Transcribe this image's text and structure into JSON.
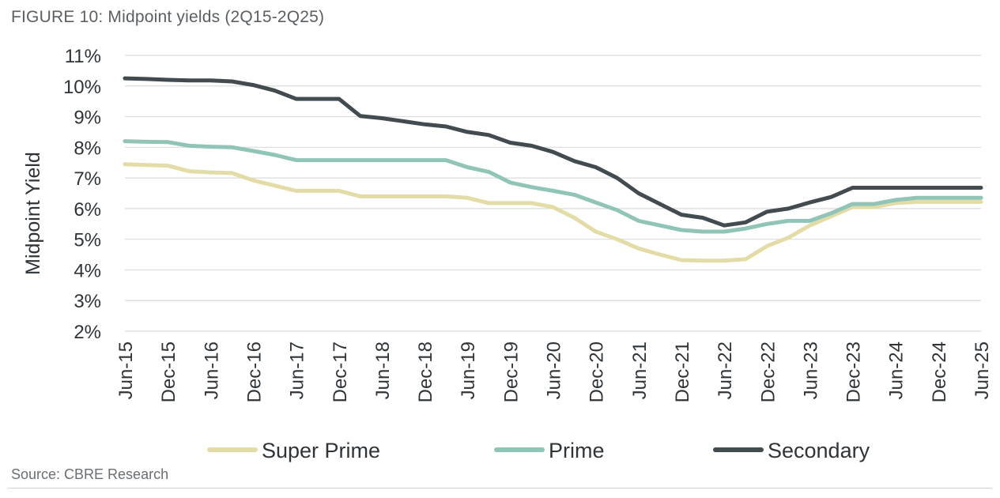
{
  "figure": {
    "title": "FIGURE 10: Midpoint yields (2Q15-2Q25)",
    "source": "Source: CBRE Research"
  },
  "chart_data": {
    "type": "line",
    "title": "FIGURE 10: Midpoint yields (2Q15-2Q25)",
    "xlabel": "",
    "ylabel": "Midpoint Yield",
    "y_unit": "%",
    "ylim": [
      2,
      11
    ],
    "yticks": [
      "2%",
      "3%",
      "4%",
      "5%",
      "6%",
      "7%",
      "8%",
      "9%",
      "10%",
      "11%"
    ],
    "xtick_labels": [
      "Jun-15",
      "Dec-15",
      "Jun-16",
      "Dec-16",
      "Jun-17",
      "Dec-17",
      "Jun-18",
      "Dec-18",
      "Jun-19",
      "Dec-19",
      "Jun-20",
      "Dec-20",
      "Jun-21",
      "Dec-21",
      "Jun-22",
      "Dec-22",
      "Jun-23",
      "Dec-23",
      "Jun-24",
      "Dec-24",
      "Jun-25"
    ],
    "x": [
      "Jun-15",
      "Sep-15",
      "Dec-15",
      "Mar-16",
      "Jun-16",
      "Sep-16",
      "Dec-16",
      "Mar-17",
      "Jun-17",
      "Sep-17",
      "Dec-17",
      "Mar-18",
      "Jun-18",
      "Sep-18",
      "Dec-18",
      "Mar-19",
      "Jun-19",
      "Sep-19",
      "Dec-19",
      "Mar-20",
      "Jun-20",
      "Sep-20",
      "Dec-20",
      "Mar-21",
      "Jun-21",
      "Sep-21",
      "Dec-21",
      "Mar-22",
      "Jun-22",
      "Sep-22",
      "Dec-22",
      "Mar-23",
      "Jun-23",
      "Sep-23",
      "Dec-23",
      "Mar-24",
      "Jun-24",
      "Sep-24",
      "Dec-24",
      "Mar-25",
      "Jun-25"
    ],
    "series": [
      {
        "name": "Super Prime",
        "color": "#e3dca6",
        "values": [
          7.45,
          7.42,
          7.4,
          7.22,
          7.18,
          7.16,
          6.92,
          6.75,
          6.58,
          6.58,
          6.58,
          6.4,
          6.4,
          6.4,
          6.4,
          6.4,
          6.35,
          6.18,
          6.18,
          6.18,
          6.05,
          5.7,
          5.25,
          5.0,
          4.7,
          4.5,
          4.32,
          4.3,
          4.3,
          4.35,
          4.78,
          5.05,
          5.45,
          5.75,
          6.05,
          6.05,
          6.18,
          6.22,
          6.22,
          6.22,
          6.22
        ]
      },
      {
        "name": "Prime",
        "color": "#8fc4b7",
        "values": [
          8.2,
          8.18,
          8.17,
          8.05,
          8.02,
          8.0,
          7.88,
          7.75,
          7.58,
          7.58,
          7.58,
          7.58,
          7.58,
          7.58,
          7.58,
          7.58,
          7.35,
          7.2,
          6.85,
          6.7,
          6.58,
          6.45,
          6.2,
          5.95,
          5.6,
          5.45,
          5.3,
          5.25,
          5.25,
          5.35,
          5.5,
          5.6,
          5.6,
          5.85,
          6.15,
          6.15,
          6.28,
          6.35,
          6.35,
          6.35,
          6.35
        ]
      },
      {
        "name": "Secondary",
        "color": "#424b4f",
        "values": [
          10.25,
          10.23,
          10.2,
          10.18,
          10.18,
          10.15,
          10.03,
          9.85,
          9.58,
          9.58,
          9.58,
          9.02,
          8.95,
          8.85,
          8.75,
          8.68,
          8.5,
          8.4,
          8.15,
          8.05,
          7.85,
          7.55,
          7.35,
          7.0,
          6.5,
          6.15,
          5.8,
          5.7,
          5.45,
          5.55,
          5.9,
          6.0,
          6.2,
          6.38,
          6.68,
          6.68,
          6.68,
          6.68,
          6.68,
          6.68,
          6.68
        ]
      }
    ],
    "grid": true,
    "legend_position": "bottom"
  }
}
